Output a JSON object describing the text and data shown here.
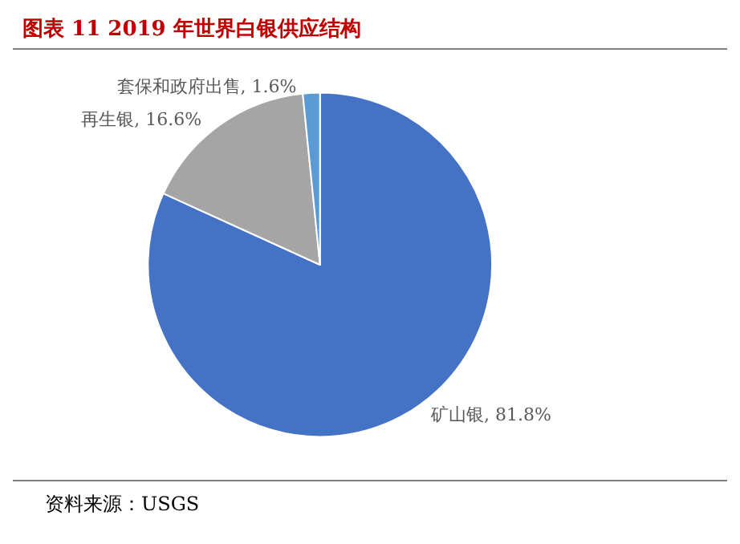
{
  "chart_data": {
    "type": "pie",
    "title": "图表 11 2019 年世界白银供应结构",
    "categories": [
      "矿山银",
      "再生银",
      "套保和政府出售"
    ],
    "values": [
      81.8,
      16.6,
      1.6
    ],
    "value_labels": [
      "81.8%",
      "16.6%",
      "1.6%"
    ],
    "colors": [
      "#4472c4",
      "#a5a5a5",
      "#5b9bd5"
    ],
    "legend": false,
    "annotations": [
      "资料来源：USGS"
    ]
  }
}
